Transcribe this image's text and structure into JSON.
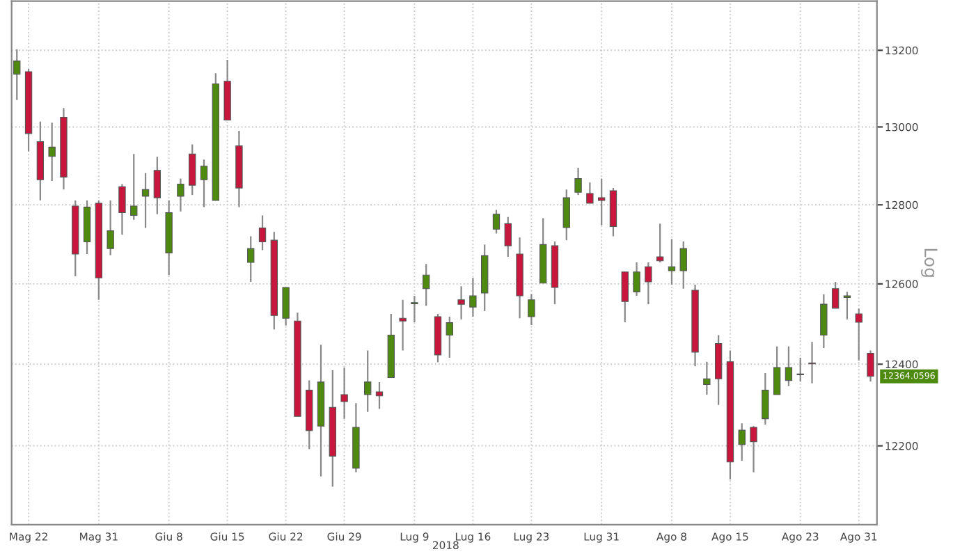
{
  "chart_data": {
    "type": "candlestick",
    "ylabel": "Log",
    "categories": [
      null,
      "Mag 22",
      null,
      null,
      null,
      null,
      null,
      "Mag 31",
      null,
      null,
      null,
      null,
      null,
      "Giu 8",
      null,
      null,
      null,
      null,
      "Giu 15",
      null,
      null,
      null,
      null,
      "Giu 22",
      null,
      null,
      null,
      null,
      "Giu 29",
      null,
      null,
      null,
      null,
      null,
      "Lug 9",
      null,
      null,
      null,
      null,
      "Lug 16",
      null,
      null,
      null,
      null,
      "Lug 23",
      null,
      null,
      null,
      null,
      null,
      "Lug 31",
      null,
      null,
      null,
      null,
      null,
      "Ago 8",
      null,
      null,
      null,
      null,
      "Ago 15",
      null,
      null,
      null,
      null,
      null,
      "Ago 23",
      null,
      null,
      null,
      null,
      "Ago 31",
      null
    ],
    "ohlc": [
      [
        13137,
        13203,
        13070,
        13172
      ],
      [
        13144,
        13151,
        12937,
        12983
      ],
      [
        12962,
        13014,
        12811,
        12864
      ],
      [
        12924,
        13011,
        12861,
        12948
      ],
      [
        13025,
        13049,
        12839,
        12871
      ],
      [
        12797,
        12811,
        12619,
        12675
      ],
      [
        12706,
        12811,
        12675,
        12794
      ],
      [
        12804,
        12811,
        12560,
        12615
      ],
      [
        12689,
        12811,
        12672,
        12734
      ],
      [
        12846,
        12853,
        12724,
        12780
      ],
      [
        12773,
        12930,
        12762,
        12797
      ],
      [
        12822,
        12881,
        12741,
        12839
      ],
      [
        12888,
        12923,
        12776,
        12818
      ],
      [
        12678,
        12811,
        12622,
        12780
      ],
      [
        12822,
        12867,
        12783,
        12853
      ],
      [
        12930,
        12955,
        12825,
        12850
      ],
      [
        12864,
        12916,
        12794,
        12899
      ],
      [
        12811,
        13140,
        12811,
        13112
      ],
      [
        13119,
        13175,
        13018,
        13018
      ],
      [
        12951,
        12990,
        12794,
        12843
      ],
      [
        12654,
        12720,
        12605,
        12689
      ],
      [
        12741,
        12773,
        12685,
        12706
      ],
      [
        12710,
        12731,
        12486,
        12521
      ],
      [
        12514,
        12591,
        12496,
        12591
      ],
      [
        12507,
        12528,
        12272,
        12272
      ],
      [
        12336,
        12360,
        12192,
        12237
      ],
      [
        12248,
        12448,
        12126,
        12356
      ],
      [
        12294,
        12385,
        12101,
        12175
      ],
      [
        12325,
        12392,
        12266,
        12308
      ],
      [
        12146,
        12304,
        12136,
        12245
      ],
      [
        12325,
        12434,
        12283,
        12356
      ],
      [
        12332,
        12356,
        12290,
        12322
      ],
      [
        12367,
        12525,
        12367,
        12472
      ],
      [
        12514,
        12560,
        12434,
        12507
      ],
      [
        12550,
        12570,
        12504,
        12553
      ],
      [
        12588,
        12650,
        12545,
        12622
      ],
      [
        12518,
        12525,
        12405,
        12423
      ],
      [
        12472,
        12518,
        12416,
        12503
      ],
      [
        12560,
        12594,
        12511,
        12549
      ],
      [
        12542,
        12615,
        12518,
        12570
      ],
      [
        12577,
        12699,
        12532,
        12671
      ],
      [
        12738,
        12787,
        12727,
        12776
      ],
      [
        12752,
        12769,
        12668,
        12696
      ],
      [
        12675,
        12717,
        12514,
        12570
      ],
      [
        12518,
        12574,
        12497,
        12560
      ],
      [
        12602,
        12766,
        12602,
        12699
      ],
      [
        12696,
        12707,
        12549,
        12591
      ],
      [
        12742,
        12839,
        12710,
        12818
      ],
      [
        12832,
        12895,
        12825,
        12867
      ],
      [
        12829,
        12857,
        12804,
        12804
      ],
      [
        12818,
        12867,
        12748,
        12811
      ],
      [
        12836,
        12843,
        12720,
        12745
      ],
      [
        12630,
        12630,
        12504,
        12556
      ],
      [
        12580,
        12654,
        12570,
        12630
      ],
      [
        12643,
        12654,
        12549,
        12605
      ],
      [
        12668,
        12752,
        12654,
        12658
      ],
      [
        12633,
        12713,
        12598,
        12643
      ],
      [
        12633,
        12707,
        12588,
        12689
      ],
      [
        12584,
        12598,
        12395,
        12430
      ],
      [
        12350,
        12406,
        12325,
        12364
      ],
      [
        12451,
        12472,
        12300,
        12364
      ],
      [
        12406,
        12434,
        12119,
        12161
      ],
      [
        12203,
        12255,
        12164,
        12238
      ],
      [
        12245,
        12248,
        12136,
        12210
      ],
      [
        12266,
        12378,
        12252,
        12336
      ],
      [
        12325,
        12444,
        12325,
        12392
      ],
      [
        12360,
        12444,
        12346,
        12392
      ],
      [
        12376,
        12416,
        12357,
        12374
      ],
      [
        12403,
        12455,
        12353,
        12401
      ],
      [
        12472,
        12574,
        12440,
        12549
      ],
      [
        12588,
        12605,
        12539,
        12539
      ],
      [
        12566,
        12580,
        12511,
        12570
      ],
      [
        12525,
        12538,
        12409,
        12504
      ],
      [
        12427,
        12434,
        12357,
        12370
      ]
    ],
    "colors": [
      "#4f8a10",
      "#c8163c",
      "#c8163c",
      "#4f8a10",
      "#c8163c",
      "#c8163c",
      "#4f8a10",
      "#c8163c",
      "#4f8a10",
      "#c8163c",
      "#4f8a10",
      "#4f8a10",
      "#c8163c",
      "#4f8a10",
      "#4f8a10",
      "#c8163c",
      "#4f8a10",
      "#4f8a10",
      "#c8163c",
      "#c8163c",
      "#4f8a10",
      "#c8163c",
      "#c8163c",
      "#4f8a10",
      "#c8163c",
      "#c8163c",
      "#4f8a10",
      "#c8163c",
      "#c8163c",
      "#4f8a10",
      "#4f8a10",
      "#c8163c",
      "#4f8a10",
      "#c8163c",
      "#4f8a10",
      "#4f8a10",
      "#c8163c",
      "#4f8a10",
      "#c8163c",
      "#4f8a10",
      "#4f8a10",
      "#4f8a10",
      "#c8163c",
      "#c8163c",
      "#4f8a10",
      "#4f8a10",
      "#c8163c",
      "#4f8a10",
      "#4f8a10",
      "#c8163c",
      "#c8163c",
      "#c8163c",
      "#c8163c",
      "#4f8a10",
      "#c8163c",
      "#c8163c",
      "#4f8a10",
      "#4f8a10",
      "#c8163c",
      "#4f8a10",
      "#c8163c",
      "#c8163c",
      "#4f8a10",
      "#c8163c",
      "#4f8a10",
      "#4f8a10",
      "#4f8a10",
      "#c8163c",
      "#c8163c",
      "#4f8a10",
      "#c8163c",
      "#4f8a10",
      "#c8163c",
      "#c8163c"
    ],
    "log": "y",
    "ylim": [
      12010,
      13330
    ],
    "yticks": [
      12200,
      12400,
      12600,
      12800,
      13000,
      13200
    ],
    "grid": true,
    "annotations": [
      "2018",
      "12364.0596"
    ]
  }
}
